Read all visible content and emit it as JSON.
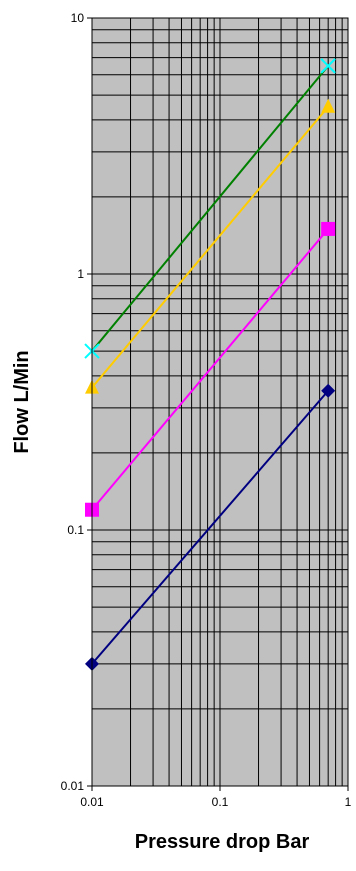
{
  "chart_data": {
    "type": "line",
    "title": "",
    "xlabel": "Pressure drop Bar",
    "ylabel": "Flow L/Min",
    "x_scale": "log",
    "y_scale": "log",
    "xlim": [
      0.01,
      1
    ],
    "ylim": [
      0.01,
      10
    ],
    "x_ticks": [
      "0.01",
      "0.1",
      "1"
    ],
    "y_ticks": [
      "0.01",
      "0.1",
      "1",
      "10"
    ],
    "grid": true,
    "plot_background": "#c0c0c0",
    "series": [
      {
        "color": "#000080",
        "marker": "diamond",
        "x": [
          0.01,
          0.7
        ],
        "y": [
          0.03,
          0.35
        ]
      },
      {
        "color": "#ff00ff",
        "marker": "square",
        "x": [
          0.01,
          0.7
        ],
        "y": [
          0.12,
          1.5
        ]
      },
      {
        "color": "#ffcc00",
        "marker": "triangle",
        "x": [
          0.01,
          0.7
        ],
        "y": [
          0.36,
          4.5
        ]
      },
      {
        "color": "#008000",
        "marker_color": "#00ffff",
        "marker": "x",
        "x": [
          0.01,
          0.7
        ],
        "y": [
          0.5,
          6.5
        ]
      }
    ]
  }
}
